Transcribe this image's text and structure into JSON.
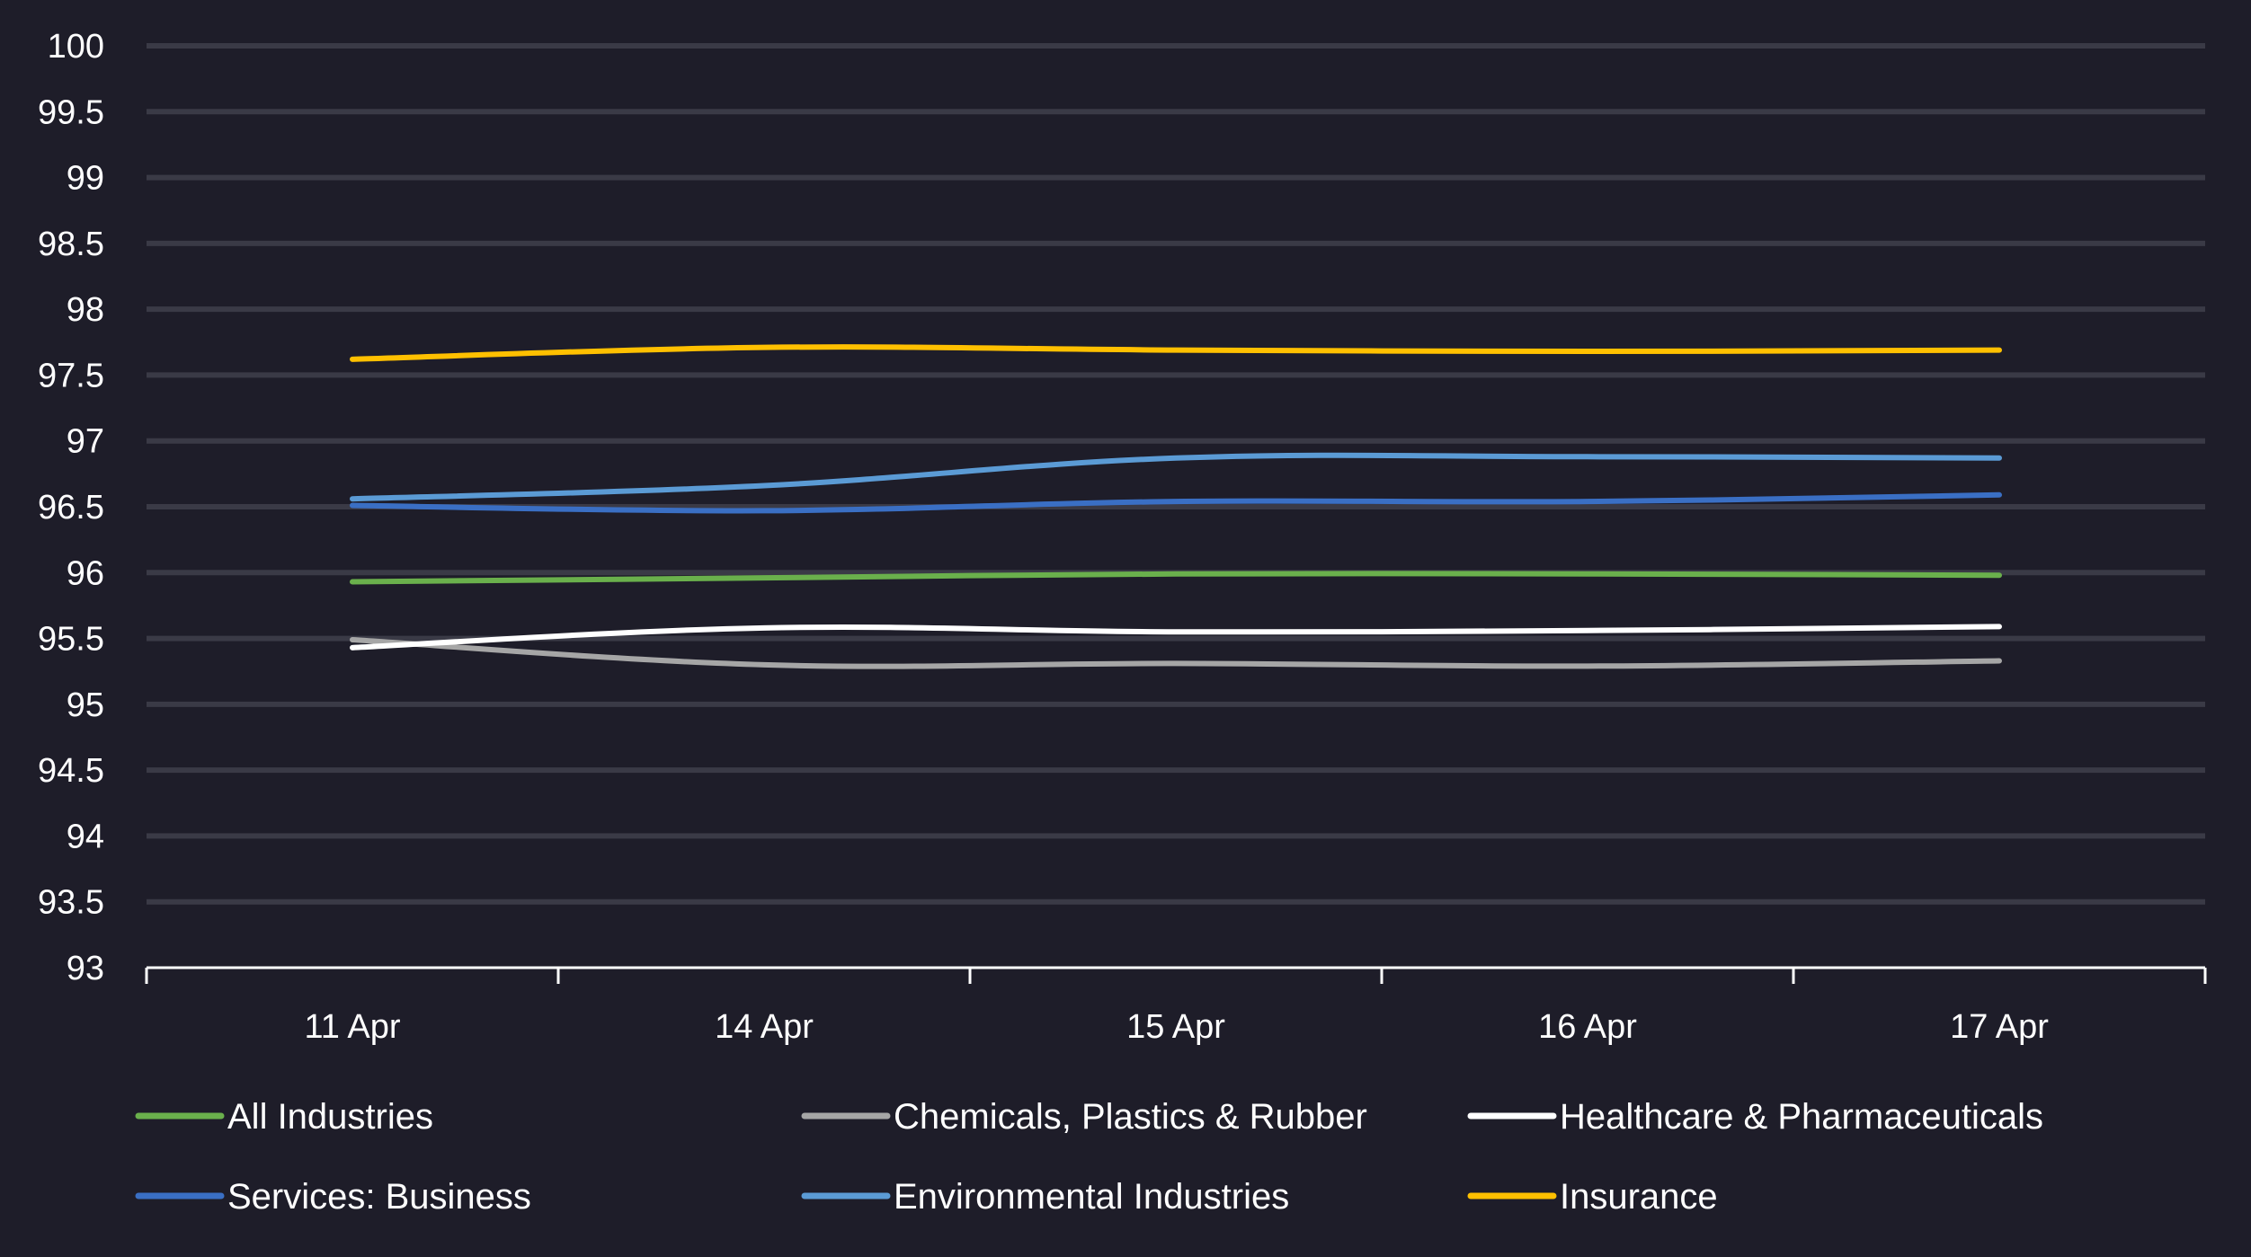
{
  "chart_data": {
    "type": "line",
    "title": "",
    "xlabel": "",
    "ylabel": "",
    "categories": [
      "11 Apr",
      "14 Apr",
      "15 Apr",
      "16 Apr",
      "17 Apr"
    ],
    "ylim": [
      93,
      100
    ],
    "yticks": [
      "93",
      "93.5",
      "94",
      "94.5",
      "95",
      "95.5",
      "96",
      "96.5",
      "97",
      "97.5",
      "98",
      "98.5",
      "99",
      "99.5",
      "100"
    ],
    "grid": true,
    "legend_position": "bottom",
    "series": [
      {
        "name": "All Industries",
        "color": "#6ab04c",
        "values": [
          95.93,
          95.96,
          95.99,
          95.99,
          95.98
        ]
      },
      {
        "name": "Chemicals, Plastics & Rubber",
        "color": "#a6a6a6",
        "values": [
          95.49,
          95.3,
          95.31,
          95.29,
          95.33
        ]
      },
      {
        "name": "Healthcare & Pharmaceuticals",
        "color": "#ffffff",
        "values": [
          95.43,
          95.58,
          95.55,
          95.56,
          95.59
        ]
      },
      {
        "name": "Services: Business",
        "color": "#3a6fc4",
        "values": [
          96.51,
          96.47,
          96.54,
          96.54,
          96.59
        ]
      },
      {
        "name": "Environmental Industries",
        "color": "#5b9bd5",
        "values": [
          96.56,
          96.66,
          96.87,
          96.88,
          96.87
        ]
      },
      {
        "name": "Insurance",
        "color": "#ffc000",
        "values": [
          97.62,
          97.71,
          97.69,
          97.68,
          97.69
        ]
      }
    ]
  }
}
